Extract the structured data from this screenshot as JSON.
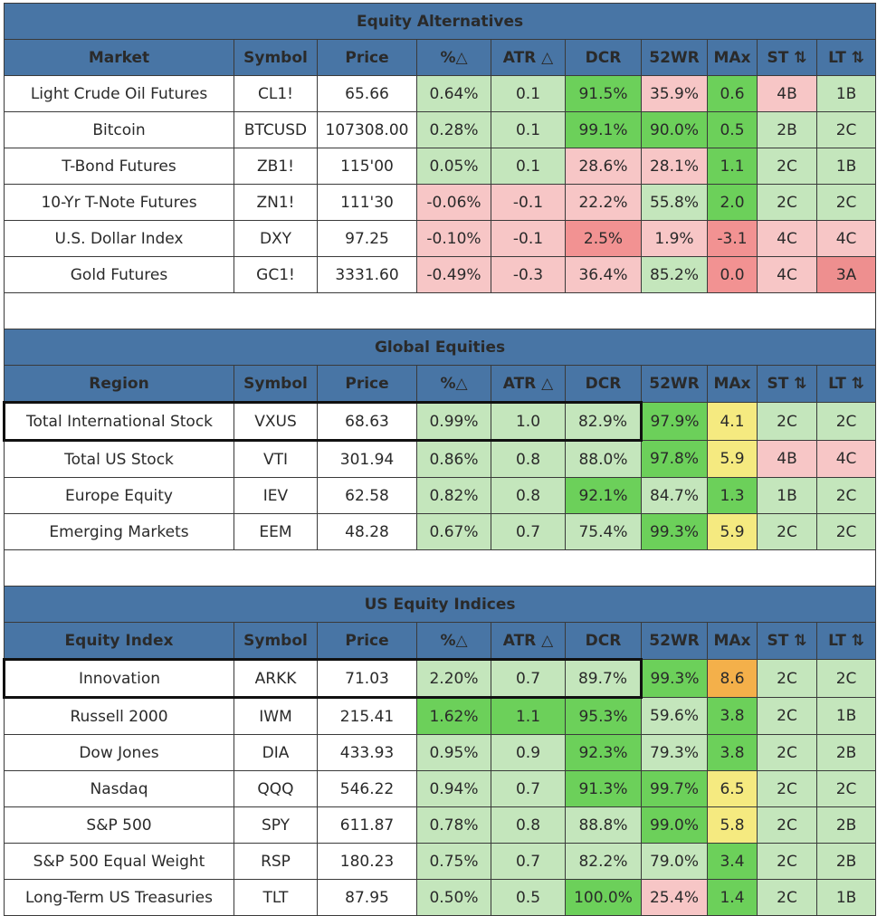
{
  "columns_alt": [
    "Market",
    "Symbol",
    "Price",
    "%△",
    "ATR △",
    "DCR",
    "52WR",
    "MAx",
    "ST ⇅",
    "LT ⇅"
  ],
  "columns_global": [
    "Region",
    "Symbol",
    "Price",
    "%△",
    "ATR △",
    "DCR",
    "52WR",
    "MAx",
    "ST ⇅",
    "LT ⇅"
  ],
  "columns_us": [
    "Equity Index",
    "Symbol",
    "Price",
    "%△",
    "ATR △",
    "DCR",
    "52WR",
    "MAx",
    "ST ⇅",
    "LT ⇅"
  ],
  "sections": [
    {
      "title": "Equity Alternatives",
      "rows": [
        {
          "name": "Light Crude Oil Futures",
          "symbol": "CL1!",
          "price": "65.66",
          "pct": "0.64%",
          "atr": "0.1",
          "dcr": "91.5%",
          "wr": "35.9%",
          "max": "0.6",
          "st": "4B",
          "lt": "1B"
        },
        {
          "name": "Bitcoin",
          "symbol": "BTCUSD",
          "price": "107308.00",
          "pct": "0.28%",
          "atr": "0.1",
          "dcr": "99.1%",
          "wr": "90.0%",
          "max": "0.5",
          "st": "2B",
          "lt": "2C"
        },
        {
          "name": "T-Bond Futures",
          "symbol": "ZB1!",
          "price": "115'00",
          "pct": "0.05%",
          "atr": "0.1",
          "dcr": "28.6%",
          "wr": "28.1%",
          "max": "1.1",
          "st": "2C",
          "lt": "1B"
        },
        {
          "name": "10-Yr T-Note Futures",
          "symbol": "ZN1!",
          "price": "111'30",
          "pct": "-0.06%",
          "atr": "-0.1",
          "dcr": "22.2%",
          "wr": "55.8%",
          "max": "2.0",
          "st": "2C",
          "lt": "2C"
        },
        {
          "name": "U.S. Dollar Index",
          "symbol": "DXY",
          "price": "97.25",
          "pct": "-0.10%",
          "atr": "-0.1",
          "dcr": "2.5%",
          "wr": "1.9%",
          "max": "-3.1",
          "st": "4C",
          "lt": "4C"
        },
        {
          "name": "Gold Futures",
          "symbol": "GC1!",
          "price": "3331.60",
          "pct": "-0.49%",
          "atr": "-0.3",
          "dcr": "36.4%",
          "wr": "85.2%",
          "max": "0.0",
          "st": "4C",
          "lt": "3A"
        }
      ]
    },
    {
      "title": "Global Equities",
      "rows": [
        {
          "name": "Total International Stock",
          "symbol": "VXUS",
          "price": "68.63",
          "pct": "0.99%",
          "atr": "1.0",
          "dcr": "82.9%",
          "wr": "97.9%",
          "max": "4.1",
          "st": "2C",
          "lt": "2C"
        },
        {
          "name": "Total US Stock",
          "symbol": "VTI",
          "price": "301.94",
          "pct": "0.86%",
          "atr": "0.8",
          "dcr": "88.0%",
          "wr": "97.8%",
          "max": "5.9",
          "st": "4B",
          "lt": "4C"
        },
        {
          "name": "Europe Equity",
          "symbol": "IEV",
          "price": "62.58",
          "pct": "0.82%",
          "atr": "0.8",
          "dcr": "92.1%",
          "wr": "84.7%",
          "max": "1.3",
          "st": "1B",
          "lt": "2C"
        },
        {
          "name": "Emerging Markets",
          "symbol": "EEM",
          "price": "48.28",
          "pct": "0.67%",
          "atr": "0.7",
          "dcr": "75.4%",
          "wr": "99.3%",
          "max": "5.9",
          "st": "2C",
          "lt": "2C"
        }
      ]
    },
    {
      "title": "US Equity Indices",
      "rows": [
        {
          "name": "Innovation",
          "symbol": "ARKK",
          "price": "71.03",
          "pct": "2.20%",
          "atr": "0.7",
          "dcr": "89.7%",
          "wr": "99.3%",
          "max": "8.6",
          "st": "2C",
          "lt": "2C"
        },
        {
          "name": "Russell 2000",
          "symbol": "IWM",
          "price": "215.41",
          "pct": "1.62%",
          "atr": "1.1",
          "dcr": "95.3%",
          "wr": "59.6%",
          "max": "3.8",
          "st": "2C",
          "lt": "1B"
        },
        {
          "name": "Dow Jones",
          "symbol": "DIA",
          "price": "433.93",
          "pct": "0.95%",
          "atr": "0.9",
          "dcr": "92.3%",
          "wr": "79.3%",
          "max": "3.8",
          "st": "2C",
          "lt": "2B"
        },
        {
          "name": "Nasdaq",
          "symbol": "QQQ",
          "price": "546.22",
          "pct": "0.94%",
          "atr": "0.7",
          "dcr": "91.3%",
          "wr": "99.7%",
          "max": "6.5",
          "st": "2C",
          "lt": "2C"
        },
        {
          "name": "S&P 500",
          "symbol": "SPY",
          "price": "611.87",
          "pct": "0.78%",
          "atr": "0.8",
          "dcr": "88.8%",
          "wr": "99.0%",
          "max": "5.8",
          "st": "2C",
          "lt": "2B"
        },
        {
          "name": "S&P 500 Equal Weight",
          "symbol": "RSP",
          "price": "180.23",
          "pct": "0.75%",
          "atr": "0.7",
          "dcr": "82.2%",
          "wr": "79.0%",
          "max": "3.4",
          "st": "2C",
          "lt": "2B"
        },
        {
          "name": "Long-Term US Treasuries",
          "symbol": "TLT",
          "price": "87.95",
          "pct": "0.50%",
          "atr": "0.5",
          "dcr": "100.0%",
          "wr": "25.4%",
          "max": "1.4",
          "st": "2C",
          "lt": "1B"
        }
      ]
    }
  ],
  "colors": {
    "header": "#4875a5",
    "light_green": "#c4e6bc",
    "green": "#6cd05a",
    "pink": "#f7c6c6",
    "red": "#f29292",
    "yellow": "#f5ea80",
    "orange": "#f4b04a"
  }
}
